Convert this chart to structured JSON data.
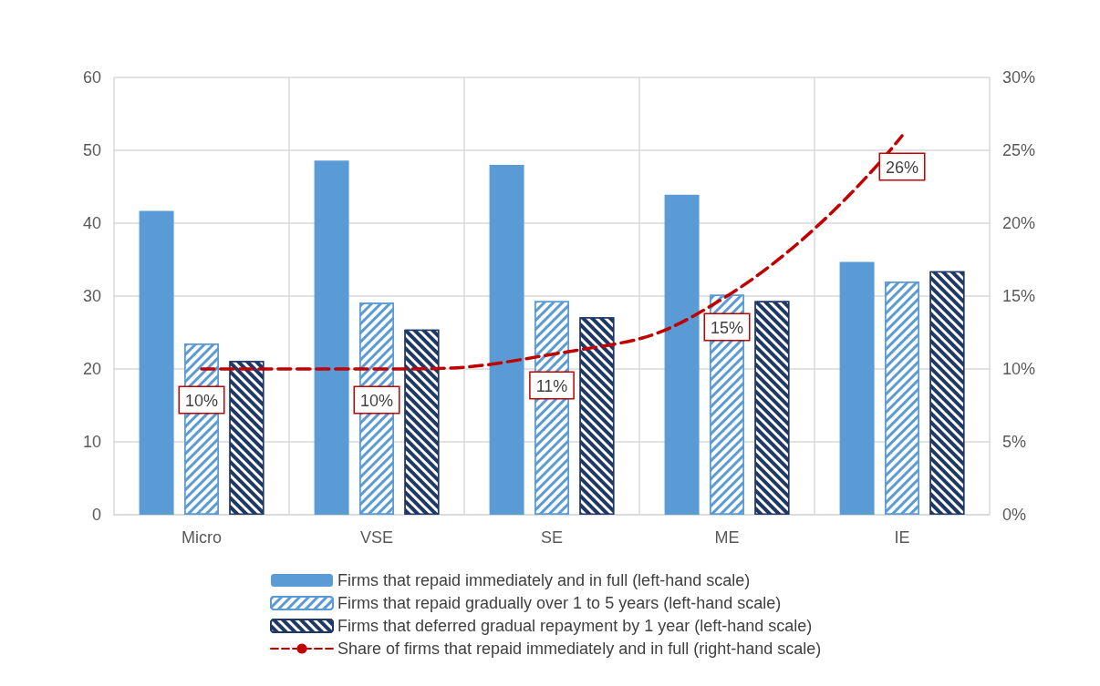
{
  "chart_data": {
    "type": "bar",
    "categories": [
      "Micro",
      "VSE",
      "SE",
      "ME",
      "IE"
    ],
    "series": [
      {
        "name": "Firms that repaid immediately and in full (left-hand scale)",
        "color": "#5b9bd5",
        "values": [
          41.7,
          48.6,
          48.0,
          43.9,
          34.7
        ]
      },
      {
        "name": "Firms that repaid gradually over 1 to 5 years (left-hand scale)",
        "color": "#5b9bd5",
        "values": [
          23.5,
          29.1,
          29.3,
          30.2,
          32.0
        ]
      },
      {
        "name": "Firms that deferred gradual repayment by 1 year (left-hand scale)",
        "color": "#1f3864",
        "values": [
          21.1,
          25.4,
          27.1,
          29.3,
          33.4
        ]
      },
      {
        "name": "Share of firms that repaid immediately and in full (right-hand scale)",
        "type": "line",
        "axis": "y2",
        "color": "#c00000",
        "values": [
          10,
          10,
          11,
          15,
          26
        ],
        "value_labels": [
          "10%",
          "10%",
          "11%",
          "15%",
          "26%"
        ]
      }
    ],
    "ylim": [
      0,
      60
    ],
    "yticks": [
      0,
      10,
      20,
      30,
      40,
      50,
      60
    ],
    "y2lim": [
      0,
      30
    ],
    "y2ticks": [
      {
        "value": 0,
        "label": "0%"
      },
      {
        "value": 5,
        "label": "5%"
      },
      {
        "value": 10,
        "label": "10%"
      },
      {
        "value": 15,
        "label": "15%"
      },
      {
        "value": 20,
        "label": "20%"
      },
      {
        "value": 25,
        "label": "25%"
      },
      {
        "value": 30,
        "label": "30%"
      }
    ],
    "grid": true,
    "legend": "bottom",
    "marker": "none",
    "line_style": "dashed"
  }
}
